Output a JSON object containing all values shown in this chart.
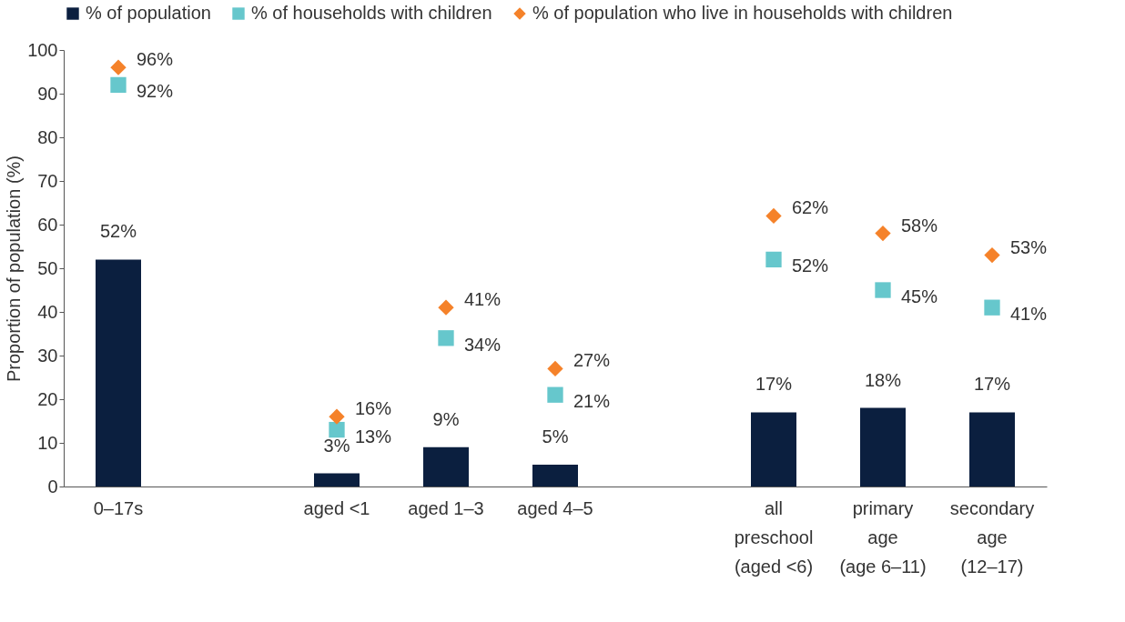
{
  "chart_data": {
    "type": "bar",
    "categories": [
      "0–17s",
      null,
      "aged <1",
      "aged 1–3",
      "aged 4–5",
      null,
      "all\npreschool\n(aged <6)",
      "primary\nage\n(age 6–11)",
      "secondary\nage\n(12–17)"
    ],
    "ylabel": "Proportion of population  (%)",
    "ylim": [
      0,
      100
    ],
    "yticks": [
      0,
      10,
      20,
      30,
      40,
      50,
      60,
      70,
      80,
      90,
      100
    ],
    "grid": false,
    "legend": "top left",
    "series": [
      {
        "name": "% of population",
        "color": "#0b1f3f",
        "values": [
          52,
          null,
          3,
          9,
          5,
          null,
          17,
          18,
          17
        ],
        "value_labels": [
          "52%",
          null,
          "3%",
          "9%",
          "5%",
          null,
          "17%",
          "18%",
          "17%"
        ]
      },
      {
        "name": "% of households with children",
        "type": "scatter",
        "marker": "square",
        "color": "#66c7cc",
        "values": [
          92,
          null,
          13,
          34,
          21,
          null,
          52,
          45,
          41
        ],
        "value_labels": [
          "92%",
          null,
          "13%",
          "34%",
          "21%",
          null,
          "52%",
          "45%",
          "41%"
        ]
      },
      {
        "name": "% of population who live in households with children",
        "type": "scatter",
        "marker": "diamond",
        "color": "#f5822a",
        "values": [
          96,
          null,
          16,
          41,
          27,
          null,
          62,
          58,
          53
        ],
        "value_labels": [
          "96%",
          null,
          "16%",
          "41%",
          "27%",
          null,
          "62%",
          "58%",
          "53%"
        ]
      }
    ]
  }
}
